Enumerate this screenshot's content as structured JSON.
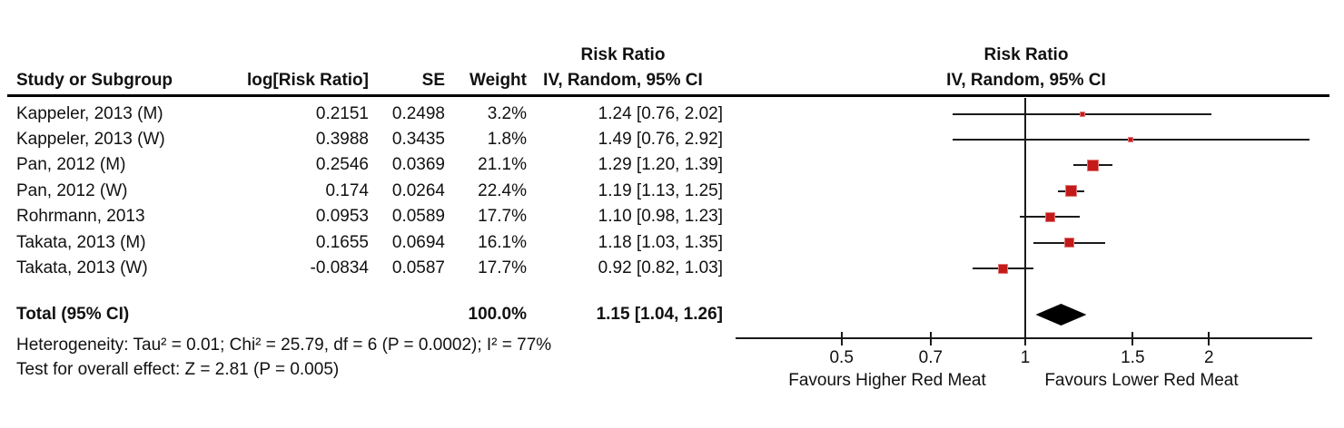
{
  "header": {
    "col_study": "Study or Subgroup",
    "col_log_rr": "log[Risk Ratio]",
    "col_se": "SE",
    "col_weight": "Weight",
    "col_rr_line1": "Risk Ratio",
    "col_rr_line2": "IV, Random, 95% CI",
    "plot_line1": "Risk Ratio",
    "plot_line2": "IV, Random, 95% CI"
  },
  "total": {
    "label": "Total (95% CI)",
    "weight": "100.0%",
    "rr_text": "1.15 [1.04, 1.26]"
  },
  "footnotes": {
    "heterogeneity": "Heterogeneity: Tau² = 0.01; Chi² = 25.79, df = 6 (P = 0.0002); I² = 77%",
    "overall_effect": "Test for overall effect: Z = 2.81 (P = 0.005)"
  },
  "chart_data": {
    "type": "forest",
    "scale": "log",
    "x_ticks": [
      0.5,
      0.7,
      1,
      1.5,
      2
    ],
    "x_tick_labels": [
      "0.5",
      "0.7",
      "1",
      "1.5",
      "2"
    ],
    "null_value": 1,
    "x_range_drawn": [
      0.34,
      2.95
    ],
    "favours_left": "Favours Higher Red Meat",
    "favours_right": "Favours Lower Red Meat",
    "marker_color": "#c41a1a",
    "marker_border_color": "#e37c7c",
    "diamond_color": "#000000",
    "points": [
      {
        "label": "Kappeler, 2013 (M)",
        "log_rr": "0.2151",
        "se": "0.2498",
        "weight_text": "3.2%",
        "weight": 3.2,
        "rr_text": "1.24 [0.76, 2.02]",
        "rr": 1.24,
        "ci_low": 0.76,
        "ci_high": 2.02
      },
      {
        "label": "Kappeler, 2013 (W)",
        "log_rr": "0.3988",
        "se": "0.3435",
        "weight_text": "1.8%",
        "weight": 1.8,
        "rr_text": "1.49 [0.76, 2.92]",
        "rr": 1.49,
        "ci_low": 0.76,
        "ci_high": 2.92
      },
      {
        "label": "Pan, 2012 (M)",
        "log_rr": "0.2546",
        "se": "0.0369",
        "weight_text": "21.1%",
        "weight": 21.1,
        "rr_text": "1.29 [1.20, 1.39]",
        "rr": 1.29,
        "ci_low": 1.2,
        "ci_high": 1.39
      },
      {
        "label": "Pan, 2012 (W)",
        "log_rr": "0.174",
        "se": "0.0264",
        "weight_text": "22.4%",
        "weight": 22.4,
        "rr_text": "1.19 [1.13, 1.25]",
        "rr": 1.19,
        "ci_low": 1.13,
        "ci_high": 1.25
      },
      {
        "label": "Rohrmann, 2013",
        "log_rr": "0.0953",
        "se": "0.0589",
        "weight_text": "17.7%",
        "weight": 17.7,
        "rr_text": "1.10 [0.98, 1.23]",
        "rr": 1.1,
        "ci_low": 0.98,
        "ci_high": 1.23
      },
      {
        "label": "Takata, 2013 (M)",
        "log_rr": "0.1655",
        "se": "0.0694",
        "weight_text": "16.1%",
        "weight": 16.1,
        "rr_text": "1.18 [1.03, 1.35]",
        "rr": 1.18,
        "ci_low": 1.03,
        "ci_high": 1.35
      },
      {
        "label": "Takata, 2013 (W)",
        "log_rr": "-0.0834",
        "se": "0.0587",
        "weight_text": "17.7%",
        "weight": 17.7,
        "rr_text": "0.92 [0.82, 1.03]",
        "rr": 0.92,
        "ci_low": 0.82,
        "ci_high": 1.03
      }
    ],
    "diamond": {
      "rr": 1.15,
      "ci_low": 1.04,
      "ci_high": 1.26
    }
  }
}
